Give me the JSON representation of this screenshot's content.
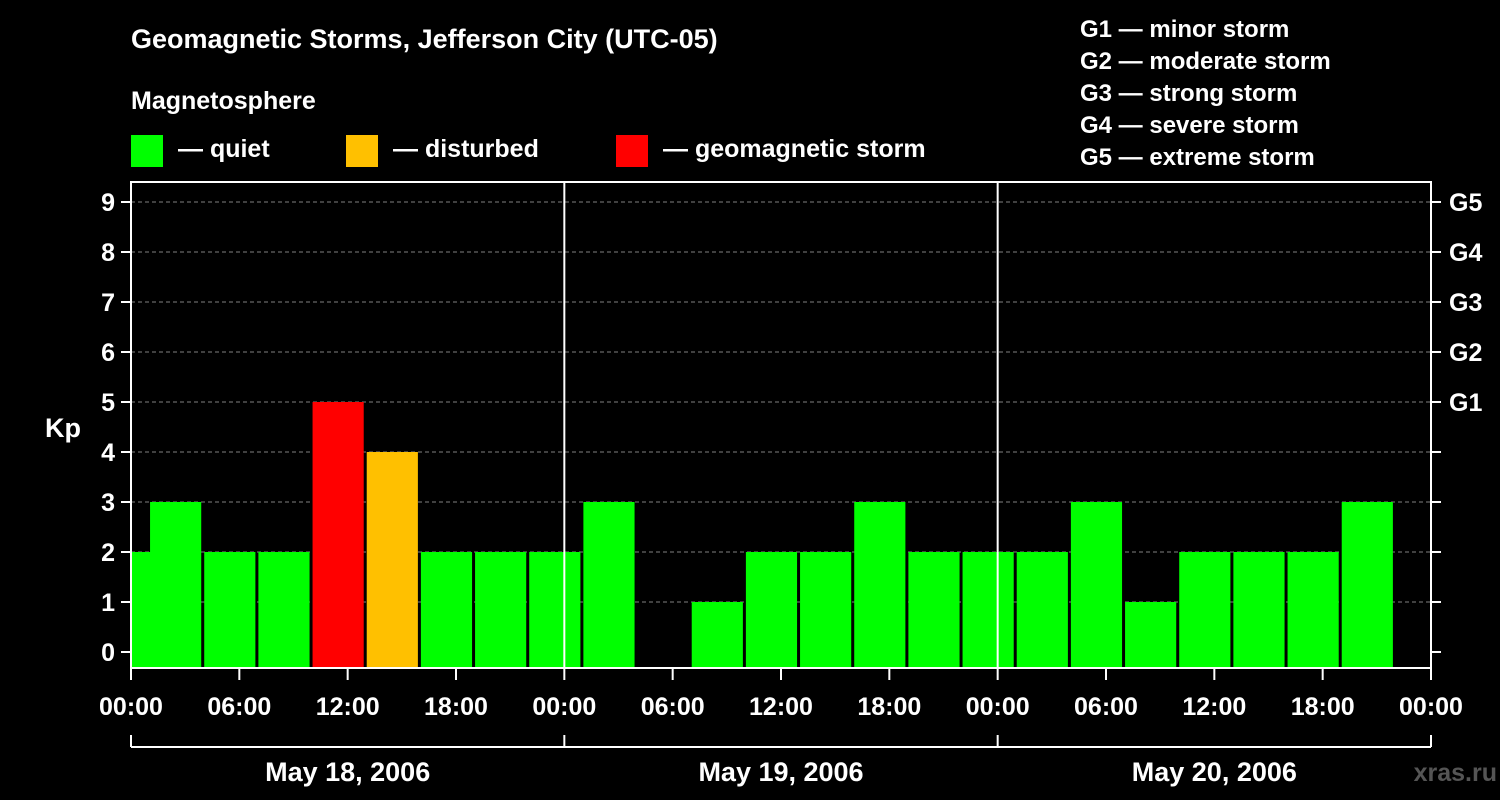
{
  "chart_data": {
    "type": "bar",
    "title": "Geomagnetic Storms, Jefferson City (UTC-05)",
    "legend_title": "Magnetosphere",
    "legend": [
      {
        "key": "quiet",
        "label": "— quiet",
        "color": "#00ff00"
      },
      {
        "key": "disturbed",
        "label": "— disturbed",
        "color": "#ffc000"
      },
      {
        "key": "storm",
        "label": "— geomagnetic storm",
        "color": "#ff0000"
      }
    ],
    "storm_scale": [
      "G1 — minor storm",
      "G2 — moderate storm",
      "G3 — strong storm",
      "G4 — severe storm",
      "G5 — extreme storm"
    ],
    "ylabel": "Kp",
    "ylim": [
      0,
      9
    ],
    "y_ticks": [
      "0",
      "1",
      "2",
      "3",
      "4",
      "5",
      "6",
      "7",
      "8",
      "9"
    ],
    "right_ticks": [
      {
        "kp": 5,
        "label": "G1"
      },
      {
        "kp": 6,
        "label": "G2"
      },
      {
        "kp": 7,
        "label": "G3"
      },
      {
        "kp": 8,
        "label": "G4"
      },
      {
        "kp": 9,
        "label": "G5"
      }
    ],
    "x_tick_labels": [
      "00:00",
      "06:00",
      "12:00",
      "18:00",
      "00:00",
      "06:00",
      "12:00",
      "18:00",
      "00:00",
      "06:00",
      "12:00",
      "18:00",
      "00:00"
    ],
    "days": [
      "May 18, 2006",
      "May 19, 2006",
      "May 20, 2006"
    ],
    "x_unit": "hours since May 18, 2006 00:00 (UTC-05)",
    "x_range": [
      0,
      72
    ],
    "bar_interval_hours": 3,
    "bars": [
      {
        "start": 0,
        "kp": 2,
        "level": "quiet"
      },
      {
        "start": 1,
        "kp": 3,
        "level": "quiet"
      },
      {
        "start": 4,
        "kp": 2,
        "level": "quiet"
      },
      {
        "start": 7,
        "kp": 2,
        "level": "quiet"
      },
      {
        "start": 10,
        "kp": 5,
        "level": "storm"
      },
      {
        "start": 13,
        "kp": 4,
        "level": "disturbed"
      },
      {
        "start": 16,
        "kp": 2,
        "level": "quiet"
      },
      {
        "start": 19,
        "kp": 2,
        "level": "quiet"
      },
      {
        "start": 22,
        "kp": 2,
        "level": "quiet"
      },
      {
        "start": 25,
        "kp": 3,
        "level": "quiet"
      },
      {
        "start": 28,
        "kp": 0,
        "level": "quiet"
      },
      {
        "start": 31,
        "kp": 1,
        "level": "quiet"
      },
      {
        "start": 34,
        "kp": 2,
        "level": "quiet"
      },
      {
        "start": 37,
        "kp": 2,
        "level": "quiet"
      },
      {
        "start": 40,
        "kp": 3,
        "level": "quiet"
      },
      {
        "start": 43,
        "kp": 2,
        "level": "quiet"
      },
      {
        "start": 46,
        "kp": 2,
        "level": "quiet"
      },
      {
        "start": 49,
        "kp": 2,
        "level": "quiet"
      },
      {
        "start": 52,
        "kp": 3,
        "level": "quiet"
      },
      {
        "start": 55,
        "kp": 1,
        "level": "quiet"
      },
      {
        "start": 58,
        "kp": 2,
        "level": "quiet"
      },
      {
        "start": 61,
        "kp": 2,
        "level": "quiet"
      },
      {
        "start": 64,
        "kp": 2,
        "level": "quiet"
      },
      {
        "start": 67,
        "kp": 3,
        "level": "quiet"
      }
    ],
    "grid": true,
    "colors": {
      "background": "#000000",
      "axis": "#ffffff",
      "grid": "#808080",
      "watermark": "#555555"
    },
    "watermark": "xras.ru"
  }
}
